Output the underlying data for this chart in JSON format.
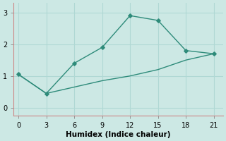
{
  "line1_x": [
    0,
    3,
    6,
    9,
    12,
    15,
    18,
    21
  ],
  "line1_y": [
    1.05,
    0.45,
    1.4,
    1.9,
    2.9,
    2.75,
    1.8,
    1.7
  ],
  "line2_x": [
    0,
    3,
    9,
    12,
    15,
    18,
    21
  ],
  "line2_y": [
    1.05,
    0.45,
    0.85,
    1.0,
    1.2,
    1.5,
    1.7
  ],
  "line_color": "#2e8b7a",
  "bg_color": "#cce8e4",
  "grid_color": "#b0d8d4",
  "spine_color": "#cc8888",
  "xlabel": "Humidex (Indice chaleur)",
  "xlim": [
    -0.5,
    22
  ],
  "ylim": [
    -0.25,
    3.3
  ],
  "xticks": [
    0,
    3,
    6,
    9,
    12,
    15,
    18,
    21
  ],
  "yticks": [
    0,
    1,
    2,
    3
  ],
  "marker": "D",
  "markersize": 2.8,
  "linewidth": 1.0,
  "xlabel_fontsize": 7.5,
  "tick_fontsize": 7
}
